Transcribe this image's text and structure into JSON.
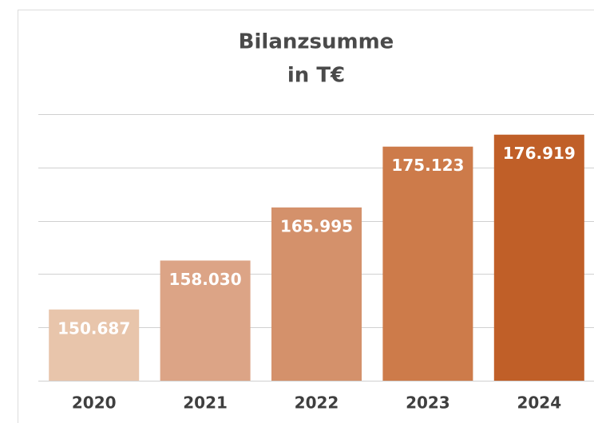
{
  "chart_data": {
    "type": "bar",
    "title": [
      "Bilanzsumme",
      "in T€"
    ],
    "categories": [
      "2020",
      "2021",
      "2022",
      "2023",
      "2024"
    ],
    "values": [
      150687,
      158030,
      165995,
      175123,
      176919
    ],
    "value_labels": [
      "150.687",
      "158.030",
      "165.995",
      "175.123",
      "176.919"
    ],
    "colors": [
      "#e8c5ab",
      "#dca486",
      "#d4916b",
      "#cd7b4a",
      "#c05f28"
    ],
    "ylim": [
      140000,
      180000
    ],
    "yticks": [
      140000,
      148000,
      156000,
      164000,
      172000,
      180000
    ],
    "grid": true
  }
}
